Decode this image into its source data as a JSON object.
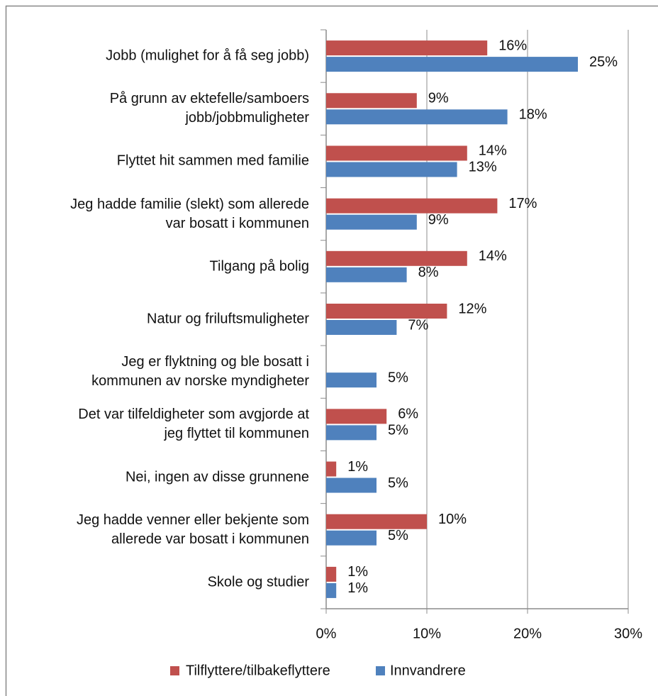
{
  "chart_data": {
    "type": "bar",
    "orientation": "horizontal",
    "categories": [
      "Jobb (mulighet for å få seg jobb)",
      "På grunn av ektefelle/samboers\njobb/jobbmuligheter",
      "Flyttet hit sammen med familie",
      "Jeg hadde familie (slekt) som allerede\nvar bosatt i kommunen",
      "Tilgang på bolig",
      "Natur og friluftsmuligheter",
      "Jeg er flyktning og ble bosatt i\nkommunen av norske myndigheter",
      "Det var tilfeldigheter som avgjorde at\njeg flyttet til kommunen",
      "Nei, ingen av disse grunnene",
      "Jeg hadde venner eller bekjente som\nallerede var bosatt i kommunen",
      "Skole og studier"
    ],
    "series": [
      {
        "name": "Tilflyttere/tilbakeflyttere",
        "color": "#c0504d",
        "values": [
          16,
          9,
          14,
          17,
          14,
          12,
          null,
          6,
          1,
          10,
          1
        ],
        "value_labels": [
          "16%",
          "9%",
          "14%",
          "17%",
          "14%",
          "12%",
          null,
          "6%",
          "1%",
          "10%",
          "1%"
        ]
      },
      {
        "name": "Innvandrere",
        "color": "#4f81bd",
        "values": [
          25,
          18,
          13,
          9,
          8,
          7,
          5,
          5,
          5,
          5,
          1
        ],
        "value_labels": [
          "25%",
          "18%",
          "13%",
          "9%",
          "8%",
          "7%",
          "5%",
          "5%",
          "5%",
          "5%",
          "1%"
        ]
      }
    ],
    "xlim": [
      0,
      30
    ],
    "xticks": [
      {
        "value": 0,
        "label": "0%"
      },
      {
        "value": 10,
        "label": "10%"
      },
      {
        "value": 20,
        "label": "20%"
      },
      {
        "value": 30,
        "label": "30%"
      }
    ],
    "grid": true,
    "legend": "bottom"
  }
}
